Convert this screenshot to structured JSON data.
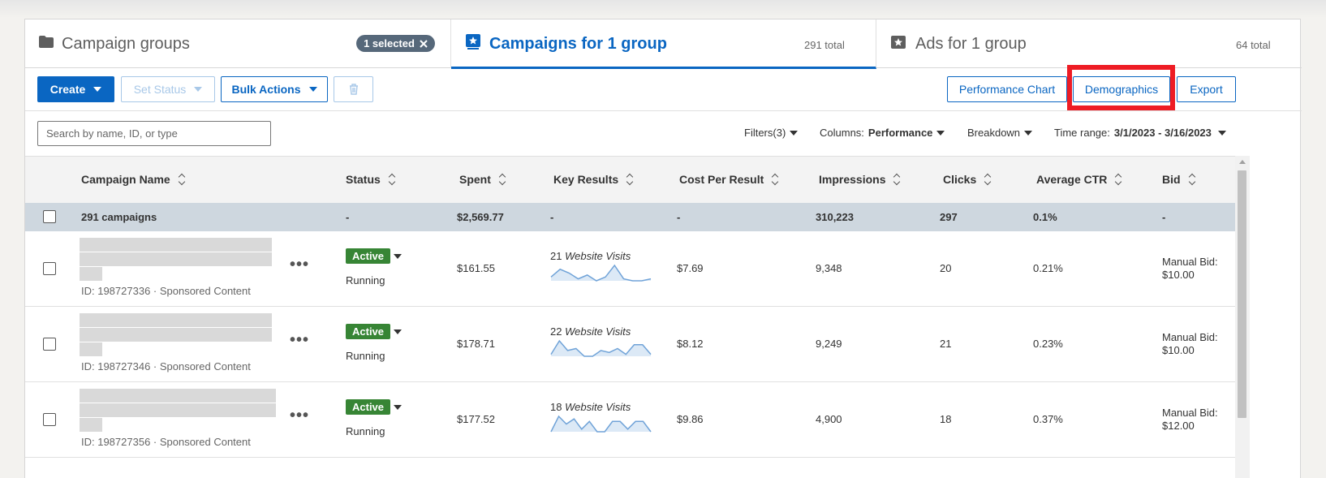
{
  "tabs": [
    {
      "title": "Campaign groups",
      "icon": "folder-icon",
      "badge": "1 selected"
    },
    {
      "title": "Campaigns for 1 group",
      "icon": "campaign-icon",
      "count": "291 total"
    },
    {
      "title": "Ads for 1 group",
      "icon": "ad-icon",
      "count": "64 total"
    }
  ],
  "toolbar": {
    "create": "Create",
    "set_status": "Set Status",
    "bulk_actions": "Bulk Actions",
    "performance_chart": "Performance Chart",
    "demographics": "Demographics",
    "export": "Export"
  },
  "filters": {
    "search_placeholder": "Search by name, ID, or type",
    "filters": "Filters(3)",
    "columns_label": "Columns:",
    "columns_value": "Performance",
    "breakdown": "Breakdown",
    "time_range_label": "Time range:",
    "time_range_value": "3/1/2023 - 3/16/2023"
  },
  "table": {
    "headers": [
      "Campaign Name",
      "Status",
      "Spent",
      "Key Results",
      "Cost Per Result",
      "Impressions",
      "Clicks",
      "Average CTR",
      "Bid"
    ],
    "summary": {
      "name": "291 campaigns",
      "status": "-",
      "spent": "$2,569.77",
      "key_results": "-",
      "cost_per_result": "-",
      "impressions": "310,223",
      "clicks": "297",
      "ctr": "0.1%",
      "bid": "-"
    },
    "rows": [
      {
        "meta": "ID: 198727336 · Sponsored Content",
        "status_badge": "Active",
        "status_text": "Running",
        "spent": "$161.55",
        "kr_count": "21",
        "kr_label": "Website Visits",
        "spark": [
          2,
          6,
          4,
          1,
          3,
          0,
          2,
          8,
          1,
          0,
          0,
          1
        ],
        "cost_per_result": "$7.69",
        "impressions": "9,348",
        "clicks": "20",
        "ctr": "0.21%",
        "bid_line1": "Manual Bid:",
        "bid_line2": "$10.00"
      },
      {
        "meta": "ID: 198727346 · Sponsored Content",
        "status_badge": "Active",
        "status_text": "Running",
        "spent": "$178.71",
        "kr_count": "22",
        "kr_label": "Website Visits",
        "spark": [
          1,
          8,
          3,
          4,
          0,
          0,
          3,
          2,
          4,
          1,
          6,
          6,
          1
        ],
        "cost_per_result": "$8.12",
        "impressions": "9,249",
        "clicks": "21",
        "ctr": "0.23%",
        "bid_line1": "Manual Bid:",
        "bid_line2": "$10.00"
      },
      {
        "meta": "ID: 198727356 · Sponsored Content",
        "status_badge": "Active",
        "status_text": "Running",
        "spent": "$177.52",
        "kr_count": "18",
        "kr_label": "Website Visits",
        "spark": [
          0,
          6,
          3,
          5,
          1,
          4,
          0,
          0,
          4,
          4,
          1,
          4,
          4,
          0
        ],
        "cost_per_result": "$9.86",
        "impressions": "4,900",
        "clicks": "18",
        "ctr": "0.37%",
        "bid_line1": "Manual Bid:",
        "bid_line2": "$12.00"
      }
    ]
  },
  "colors": {
    "accent": "#0a66c2",
    "active": "#378535",
    "highlight": "#ee1c24",
    "spark_stroke": "#70a3d8",
    "spark_fill": "#dce9f6"
  }
}
